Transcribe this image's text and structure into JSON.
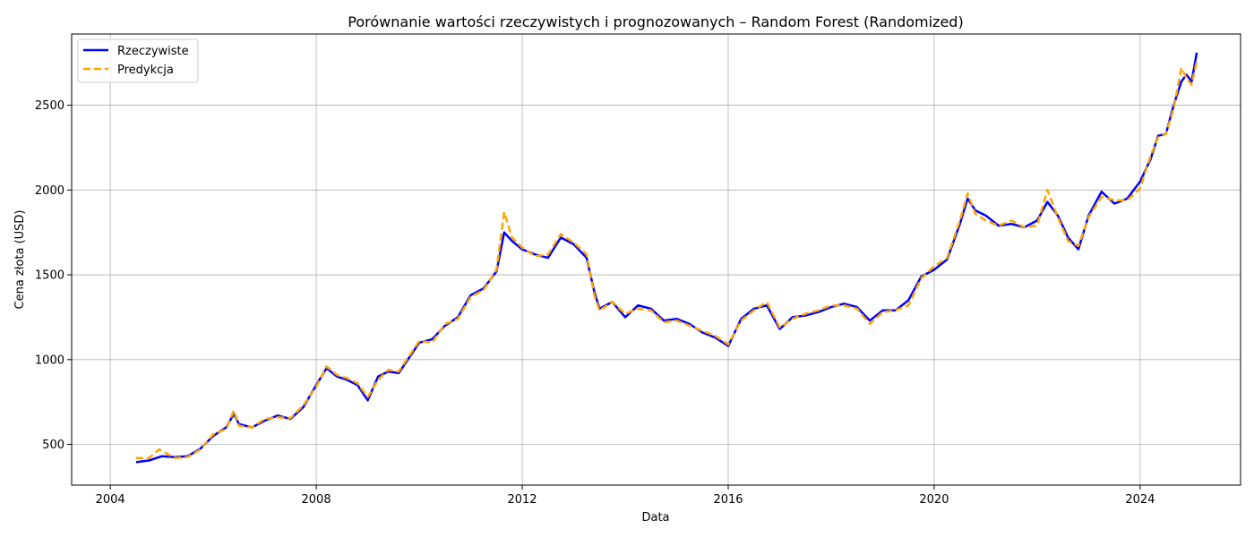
{
  "chart_data": {
    "type": "line",
    "title": "Porównanie wartości rzeczywistych i prognozowanych – Random Forest (Randomized)",
    "xlabel": "Data",
    "ylabel": "Cena złota (USD)",
    "xlim": [
      2003.25,
      2025.95
    ],
    "ylim": [
      260,
      2920
    ],
    "x_ticks": [
      2004,
      2008,
      2012,
      2016,
      2020,
      2024
    ],
    "y_ticks": [
      500,
      1000,
      1500,
      2000,
      2500
    ],
    "grid": true,
    "legend_position": "top-left",
    "series": [
      {
        "name": "Rzeczywiste",
        "color": "#0000ff",
        "style": "solid",
        "x": [
          2004.5,
          2004.75,
          2005.0,
          2005.25,
          2005.5,
          2005.75,
          2006.0,
          2006.25,
          2006.4,
          2006.5,
          2006.75,
          2007.0,
          2007.25,
          2007.5,
          2007.75,
          2008.0,
          2008.2,
          2008.4,
          2008.6,
          2008.8,
          2009.0,
          2009.2,
          2009.4,
          2009.6,
          2009.8,
          2010.0,
          2010.25,
          2010.5,
          2010.75,
          2011.0,
          2011.25,
          2011.5,
          2011.65,
          2011.8,
          2012.0,
          2012.25,
          2012.5,
          2012.75,
          2013.0,
          2013.25,
          2013.4,
          2013.5,
          2013.75,
          2014.0,
          2014.25,
          2014.5,
          2014.75,
          2015.0,
          2015.25,
          2015.5,
          2015.75,
          2016.0,
          2016.25,
          2016.5,
          2016.75,
          2017.0,
          2017.25,
          2017.5,
          2017.75,
          2018.0,
          2018.25,
          2018.5,
          2018.75,
          2019.0,
          2019.25,
          2019.5,
          2019.75,
          2020.0,
          2020.25,
          2020.5,
          2020.65,
          2020.8,
          2021.0,
          2021.25,
          2021.5,
          2021.75,
          2022.0,
          2022.2,
          2022.4,
          2022.6,
          2022.8,
          2023.0,
          2023.25,
          2023.5,
          2023.75,
          2024.0,
          2024.2,
          2024.35,
          2024.5,
          2024.65,
          2024.8,
          2024.9,
          2025.0,
          2025.1
        ],
        "values": [
          395,
          405,
          430,
          425,
          430,
          475,
          550,
          600,
          680,
          620,
          600,
          640,
          670,
          650,
          720,
          850,
          950,
          900,
          880,
          850,
          760,
          900,
          930,
          920,
          1010,
          1100,
          1120,
          1200,
          1250,
          1380,
          1420,
          1520,
          1750,
          1700,
          1650,
          1620,
          1600,
          1720,
          1680,
          1600,
          1400,
          1300,
          1340,
          1250,
          1320,
          1300,
          1230,
          1240,
          1210,
          1160,
          1130,
          1080,
          1240,
          1300,
          1320,
          1180,
          1250,
          1260,
          1280,
          1310,
          1330,
          1310,
          1230,
          1290,
          1290,
          1350,
          1490,
          1530,
          1590,
          1800,
          1950,
          1880,
          1850,
          1790,
          1800,
          1780,
          1820,
          1930,
          1850,
          1720,
          1650,
          1850,
          1990,
          1920,
          1950,
          2050,
          2180,
          2320,
          2330,
          2500,
          2640,
          2680,
          2640,
          2810
        ]
      },
      {
        "name": "Predykcja",
        "color": "#ffa500",
        "style": "dashed",
        "x": [
          2004.5,
          2004.75,
          2004.95,
          2005.25,
          2005.5,
          2005.75,
          2006.0,
          2006.25,
          2006.4,
          2006.5,
          2006.75,
          2007.0,
          2007.25,
          2007.5,
          2007.75,
          2008.0,
          2008.2,
          2008.4,
          2008.6,
          2008.8,
          2009.0,
          2009.2,
          2009.4,
          2009.6,
          2009.8,
          2010.0,
          2010.25,
          2010.5,
          2010.75,
          2011.0,
          2011.25,
          2011.5,
          2011.65,
          2011.8,
          2012.0,
          2012.25,
          2012.5,
          2012.75,
          2013.0,
          2013.25,
          2013.4,
          2013.5,
          2013.75,
          2014.0,
          2014.25,
          2014.5,
          2014.75,
          2015.0,
          2015.25,
          2015.5,
          2015.75,
          2016.0,
          2016.25,
          2016.5,
          2016.75,
          2017.0,
          2017.25,
          2017.5,
          2017.75,
          2018.0,
          2018.25,
          2018.5,
          2018.75,
          2019.0,
          2019.25,
          2019.5,
          2019.75,
          2020.0,
          2020.25,
          2020.5,
          2020.65,
          2020.8,
          2021.0,
          2021.25,
          2021.5,
          2021.75,
          2022.0,
          2022.2,
          2022.4,
          2022.6,
          2022.8,
          2023.0,
          2023.25,
          2023.5,
          2023.75,
          2024.0,
          2024.2,
          2024.35,
          2024.5,
          2024.65,
          2024.8,
          2024.9,
          2025.0,
          2025.1
        ],
        "values": [
          420,
          420,
          470,
          420,
          425,
          470,
          560,
          590,
          700,
          610,
          600,
          650,
          660,
          655,
          730,
          840,
          960,
          910,
          890,
          860,
          780,
          880,
          940,
          930,
          1020,
          1110,
          1100,
          1210,
          1240,
          1370,
          1410,
          1530,
          1870,
          1720,
          1660,
          1610,
          1620,
          1740,
          1690,
          1620,
          1380,
          1290,
          1340,
          1270,
          1300,
          1290,
          1220,
          1230,
          1200,
          1170,
          1140,
          1090,
          1230,
          1290,
          1340,
          1190,
          1240,
          1270,
          1290,
          1320,
          1320,
          1300,
          1210,
          1280,
          1290,
          1320,
          1480,
          1550,
          1600,
          1820,
          1980,
          1860,
          1820,
          1790,
          1820,
          1780,
          1790,
          2000,
          1840,
          1700,
          1670,
          1840,
          1960,
          1940,
          1940,
          2010,
          2200,
          2310,
          2330,
          2480,
          2720,
          2660,
          2620,
          2760
        ]
      }
    ]
  }
}
